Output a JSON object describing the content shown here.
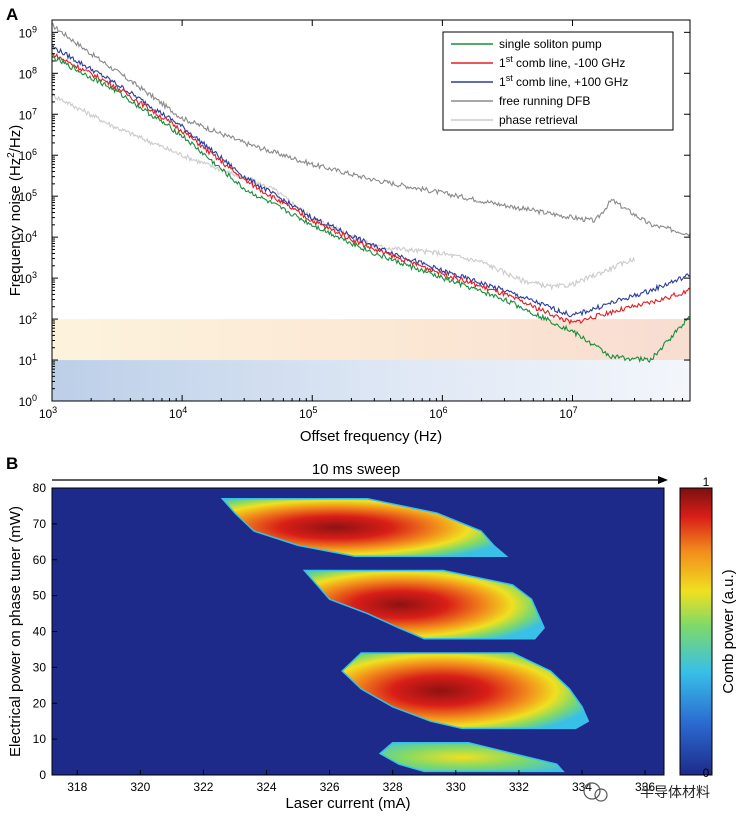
{
  "watermark": "半导体材料",
  "chart_data": [
    {
      "panel": "A",
      "type": "line",
      "xscale": "log",
      "yscale": "log",
      "xlabel": "Offset frequency (Hz)",
      "ylabel_main": "Frequency noise (Hz",
      "ylabel_sup": "2",
      "ylabel_tail": "/Hz)",
      "xlim": [
        1000,
        80000000
      ],
      "ylim": [
        1,
        2000000000
      ],
      "xticks": [
        {
          "value": 1000,
          "base": "10",
          "exp": "3"
        },
        {
          "value": 10000,
          "base": "10",
          "exp": "4"
        },
        {
          "value": 100000,
          "base": "10",
          "exp": "5"
        },
        {
          "value": 1000000,
          "base": "10",
          "exp": "6"
        },
        {
          "value": 10000000,
          "base": "10",
          "exp": "7"
        }
      ],
      "yticks": [
        {
          "value": 1,
          "base": "10",
          "exp": "0"
        },
        {
          "value": 10,
          "base": "10",
          "exp": "1"
        },
        {
          "value": 100,
          "base": "10",
          "exp": "2"
        },
        {
          "value": 1000,
          "base": "10",
          "exp": "3"
        },
        {
          "value": 10000,
          "base": "10",
          "exp": "4"
        },
        {
          "value": 100000,
          "base": "10",
          "exp": "5"
        },
        {
          "value": 1000000,
          "base": "10",
          "exp": "6"
        },
        {
          "value": 10000000,
          "base": "10",
          "exp": "7"
        },
        {
          "value": 100000000,
          "base": "10",
          "exp": "8"
        },
        {
          "value": 1000000000,
          "base": "10",
          "exp": "9"
        }
      ],
      "shaded_bands": [
        {
          "name": "lower-band",
          "y_range": [
            1,
            10
          ],
          "color": "#c7d6ec"
        },
        {
          "name": "upper-band",
          "y_range": [
            10,
            100
          ],
          "color": "#fbe7d3"
        }
      ],
      "legend_position": "top-right",
      "series": [
        {
          "name": "free running DFB",
          "legend_text": "free running DFB",
          "color": "#8a8a8a",
          "x": [
            1000,
            2000,
            5000,
            10000,
            30000,
            100000,
            300000,
            1000000,
            3000000,
            10000000,
            15000000,
            20000000,
            40000000,
            80000000
          ],
          "y": [
            1500000000,
            300000000,
            40000000,
            8000000,
            2000000,
            600000,
            250000,
            120000,
            60000,
            30000,
            25000,
            80000,
            20000,
            12000
          ]
        },
        {
          "name": "phase retrieval",
          "legend_text": "phase retrieval",
          "color": "#cccccc",
          "x": [
            1000,
            3000,
            10000,
            50000,
            100000,
            300000,
            1000000,
            2000000,
            4000000,
            7000000,
            10000000,
            30000000
          ],
          "y": [
            30000000,
            5000000,
            1000000,
            150000,
            30000,
            6000,
            4000,
            2500,
            900,
            600,
            700,
            3000
          ]
        },
        {
          "name": "1st comb line, +100 GHz",
          "legend_main": "1",
          "legend_sup": "st",
          "legend_tail": " comb line, +100 GHz",
          "color": "#2a3d9c",
          "x": [
            1000,
            3000,
            10000,
            30000,
            100000,
            300000,
            1000000,
            3000000,
            10000000,
            20000000,
            40000000,
            80000000
          ],
          "y": [
            450000000,
            60000000,
            5000000,
            300000,
            30000,
            6000,
            1500,
            500,
            120,
            250,
            500,
            1200
          ]
        },
        {
          "name": "1st comb line, -100 GHz",
          "legend_main": "1",
          "legend_sup": "st",
          "legend_tail": " comb line, -100 GHz",
          "color": "#e31e24",
          "x": [
            1000,
            3000,
            10000,
            30000,
            100000,
            300000,
            1000000,
            3000000,
            10000000,
            20000000,
            40000000,
            80000000
          ],
          "y": [
            300000000,
            50000000,
            4000000,
            250000,
            25000,
            5000,
            1300,
            400,
            80,
            150,
            250,
            500
          ]
        },
        {
          "name": "single soliton pump",
          "legend_text": "single soliton pump",
          "color": "#1a8c3c",
          "x": [
            1000,
            3000,
            10000,
            30000,
            100000,
            300000,
            1000000,
            3000000,
            10000000,
            20000000,
            40000000,
            80000000
          ],
          "y": [
            250000000,
            40000000,
            3000000,
            150000,
            20000,
            4000,
            1000,
            300,
            50,
            12,
            10,
            120
          ]
        }
      ]
    },
    {
      "panel": "B",
      "type": "heatmap",
      "xlabel": "Laser current (mA)",
      "ylabel": "Electrical power on phase tuner (mW)",
      "xlim": [
        317.2,
        336.6
      ],
      "ylim": [
        0,
        80
      ],
      "xticks": [
        "318",
        "320",
        "322",
        "324",
        "326",
        "328",
        "330",
        "332",
        "334",
        "336"
      ],
      "yticks": [
        "0",
        "10",
        "20",
        "30",
        "40",
        "50",
        "60",
        "70",
        "80"
      ],
      "sweep_label": "10 ms sweep",
      "colorbar_label": "Comb power (a.u.)",
      "colorbar_ticks": [
        "0",
        "1"
      ],
      "colormap": [
        "#1e2a8a",
        "#2b6ad0",
        "#38c0e8",
        "#7ed96a",
        "#f0e020",
        "#f28c1c",
        "#d91e18",
        "#7a1010"
      ],
      "background_color": "#1e2a8a",
      "lobes": [
        {
          "name": "lobe-1",
          "y_range": [
            60,
            80
          ],
          "x_edges": [
            [
              77,
              322.6,
              327.2
            ],
            [
              73,
              323.0,
              329.4
            ],
            [
              68,
              323.6,
              330.8
            ],
            [
              64,
              325.0,
              331.2
            ],
            [
              61,
              326.8,
              331.6
            ]
          ]
        },
        {
          "name": "lobe-2",
          "y_range": [
            37,
            58
          ],
          "x_edges": [
            [
              57,
              325.2,
              329.6
            ],
            [
              53,
              325.6,
              331.8
            ],
            [
              49,
              326.0,
              332.4
            ],
            [
              45,
              327.2,
              332.6
            ],
            [
              41,
              328.2,
              332.8
            ],
            [
              38,
              329.0,
              332.5
            ]
          ]
        },
        {
          "name": "lobe-3",
          "y_range": [
            12,
            35
          ],
          "x_edges": [
            [
              34,
              327.0,
              331.8
            ],
            [
              29,
              326.4,
              333.0
            ],
            [
              24,
              327.0,
              333.6
            ],
            [
              19,
              328.0,
              334.0
            ],
            [
              15,
              329.2,
              334.2
            ],
            [
              13,
              330.2,
              333.8
            ]
          ]
        },
        {
          "name": "lobe-4",
          "y_range": [
            0,
            10
          ],
          "x_edges": [
            [
              9,
              328.0,
              330.4
            ],
            [
              6,
              327.6,
              331.8
            ],
            [
              3,
              328.2,
              333.2
            ],
            [
              1,
              329.0,
              333.4
            ]
          ]
        }
      ]
    }
  ]
}
